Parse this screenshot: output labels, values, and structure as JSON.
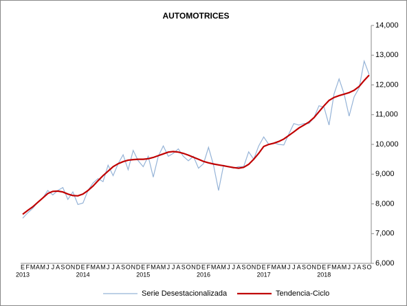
{
  "chart_data": {
    "type": "line",
    "title": "AUTOMOTRICES",
    "categories": [
      "E",
      "F",
      "M",
      "A",
      "M",
      "J",
      "J",
      "A",
      "S",
      "O",
      "N",
      "D",
      "E",
      "F",
      "M",
      "A",
      "M",
      "J",
      "J",
      "A",
      "S",
      "O",
      "N",
      "D",
      "E",
      "F",
      "M",
      "A",
      "M",
      "J",
      "J",
      "A",
      "S",
      "O",
      "N",
      "D",
      "E",
      "F",
      "M",
      "A",
      "M",
      "J",
      "J",
      "A",
      "S",
      "O",
      "N",
      "D",
      "E",
      "F",
      "M",
      "A",
      "M",
      "J",
      "J",
      "A",
      "S",
      "O",
      "N",
      "D",
      "E",
      "F",
      "M",
      "A",
      "M",
      "J",
      "J",
      "A",
      "S",
      "O"
    ],
    "year_labels": [
      "2013",
      "2014",
      "2015",
      "2016",
      "2017",
      "2018"
    ],
    "series": [
      {
        "name": "Serie Desestacionalizada",
        "color": "#95b3d7",
        "values": [
          7520,
          7700,
          7850,
          8050,
          8200,
          8450,
          8300,
          8450,
          8550,
          8150,
          8400,
          7980,
          8030,
          8450,
          8700,
          8850,
          8750,
          9300,
          8950,
          9350,
          9650,
          9150,
          9800,
          9450,
          9250,
          9600,
          8900,
          9600,
          9950,
          9600,
          9700,
          9850,
          9600,
          9450,
          9600,
          9200,
          9350,
          9900,
          9300,
          8450,
          9300,
          9250,
          9200,
          9250,
          9250,
          9750,
          9500,
          9950,
          10250,
          10000,
          10050,
          10000,
          9980,
          10350,
          10700,
          10650,
          10700,
          10700,
          10900,
          11300,
          11250,
          10650,
          11700,
          12200,
          11700,
          10950,
          11600,
          11900,
          12800,
          12350
        ]
      },
      {
        "name": "Tendencia-Ciclo",
        "color": "#c00000",
        "values": [
          7650,
          7780,
          7900,
          8050,
          8200,
          8350,
          8420,
          8430,
          8400,
          8330,
          8280,
          8270,
          8330,
          8450,
          8600,
          8780,
          8950,
          9100,
          9250,
          9350,
          9420,
          9470,
          9490,
          9500,
          9500,
          9520,
          9560,
          9620,
          9680,
          9740,
          9760,
          9740,
          9700,
          9640,
          9570,
          9500,
          9430,
          9380,
          9340,
          9310,
          9280,
          9250,
          9220,
          9200,
          9230,
          9330,
          9500,
          9700,
          9930,
          10000,
          10040,
          10100,
          10180,
          10300,
          10420,
          10550,
          10650,
          10750,
          10900,
          11100,
          11300,
          11480,
          11580,
          11640,
          11690,
          11740,
          11820,
          11950,
          12150,
          12330
        ]
      }
    ],
    "ylim": [
      6000,
      14000
    ],
    "yticks": [
      {
        "value": 6000,
        "label": "6,000"
      },
      {
        "value": 7000,
        "label": "7,000"
      },
      {
        "value": 8000,
        "label": "8,000"
      },
      {
        "value": 9000,
        "label": "9,000"
      },
      {
        "value": 10000,
        "label": "10,000"
      },
      {
        "value": 11000,
        "label": "11,000"
      },
      {
        "value": 12000,
        "label": "12,000"
      },
      {
        "value": 13000,
        "label": "13,000"
      },
      {
        "value": 14000,
        "label": "14,000"
      }
    ],
    "grid": false,
    "legend": "bottom"
  }
}
